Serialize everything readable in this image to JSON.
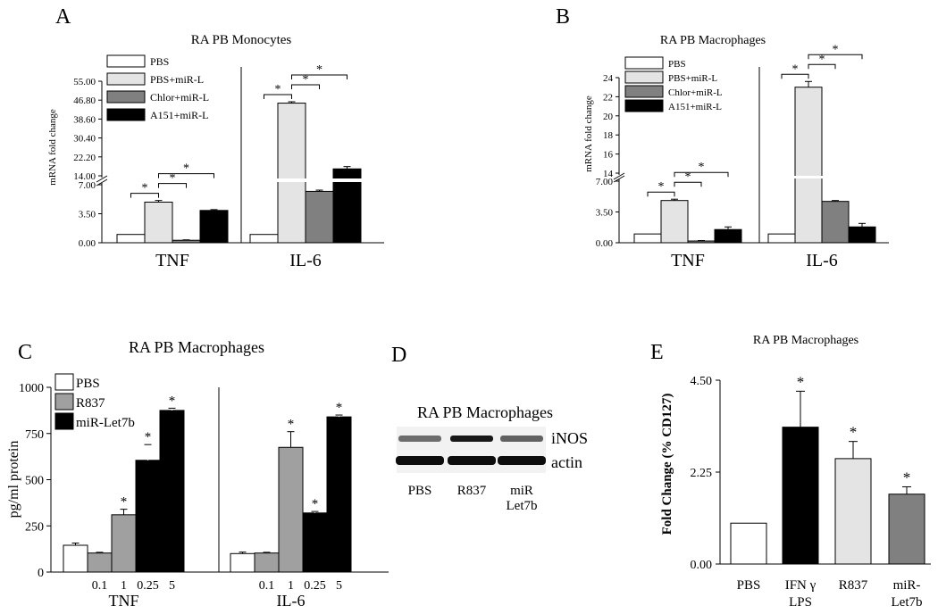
{
  "panels": {
    "A": {
      "letter": "A",
      "title": "RA PB Monocytes"
    },
    "B": {
      "letter": "B",
      "title": "RA PB Macrophages"
    },
    "C": {
      "letter": "C",
      "title": "RA PB Macrophages"
    },
    "D": {
      "letter": "D",
      "title": "RA PB Macrophages"
    },
    "E": {
      "letter": "E",
      "title": "RA PB Macrophages"
    }
  },
  "blot": {
    "bands": [
      "iNOS",
      "actin"
    ],
    "lanes": [
      "PBS",
      "R837",
      "miR\nLet7b"
    ],
    "inos_intensity": [
      0.55,
      0.9,
      0.6
    ],
    "actin_intensity": [
      0.95,
      0.95,
      0.95
    ]
  },
  "chart_data": [
    {
      "panel": "A",
      "type": "bar",
      "title": "RA PB Monocytes",
      "ylabel": "mRNA fold change",
      "groups": [
        "TNF",
        "IL-6"
      ],
      "legend": [
        "PBS",
        "PBS+miR-L",
        "Chlor+miR-L",
        "A151+miR-L"
      ],
      "series_colors": [
        "#ffffff",
        "#e4e4e4",
        "#808080",
        "#000000"
      ],
      "lower_axis": {
        "range": [
          0,
          7
        ],
        "ticks": [
          "0.00",
          "3.50",
          "7.00"
        ]
      },
      "upper_axis": {
        "range": [
          14,
          55
        ],
        "ticks": [
          "14.00",
          "22.20",
          "30.40",
          "38.60",
          "46.80",
          "55.00"
        ]
      },
      "axis_break": [
        7,
        14
      ],
      "values": {
        "TNF": [
          1.0,
          4.9,
          0.3,
          3.9
        ],
        "IL-6": [
          1.0,
          45.5,
          6.2,
          17.0
        ]
      },
      "errors": {
        "TNF": [
          0.0,
          0.2,
          0.05,
          0.1
        ],
        "IL-6": [
          0.0,
          0.6,
          0.15,
          1.0
        ]
      },
      "significance": {
        "TNF": [
          [
            1,
            0
          ],
          [
            1,
            2
          ],
          [
            1,
            3
          ]
        ],
        "IL-6": [
          [
            1,
            0
          ],
          [
            1,
            2
          ],
          [
            1,
            3
          ]
        ]
      },
      "sig_label": "*"
    },
    {
      "panel": "B",
      "type": "bar",
      "title": "RA PB Macrophages",
      "ylabel": "mRNA fold change",
      "groups": [
        "TNF",
        "IL-6"
      ],
      "legend": [
        "PBS",
        "PBS+miR-L",
        "Chlor+miR-L",
        "A151+miR-L"
      ],
      "series_colors": [
        "#ffffff",
        "#e4e4e4",
        "#808080",
        "#000000"
      ],
      "lower_axis": {
        "range": [
          0,
          7
        ],
        "ticks": [
          "0.00",
          "3.50",
          "7.00"
        ]
      },
      "upper_axis": {
        "range": [
          14,
          24
        ],
        "ticks": [
          "14",
          "16",
          "18",
          "20",
          "22",
          "24"
        ]
      },
      "axis_break": [
        7,
        14
      ],
      "values": {
        "TNF": [
          1.0,
          4.8,
          0.2,
          1.5
        ],
        "IL-6": [
          1.0,
          23.0,
          4.7,
          1.8
        ]
      },
      "errors": {
        "TNF": [
          0.0,
          0.15,
          0.05,
          0.3
        ],
        "IL-6": [
          0.0,
          0.6,
          0.1,
          0.4
        ]
      },
      "significance": {
        "TNF": [
          [
            1,
            0
          ],
          [
            1,
            2
          ],
          [
            1,
            3
          ]
        ],
        "IL-6": [
          [
            1,
            0
          ],
          [
            1,
            2
          ],
          [
            1,
            3
          ]
        ]
      },
      "sig_label": "*"
    },
    {
      "panel": "C",
      "type": "bar",
      "title": "RA PB Macrophages",
      "ylabel": "pg/ml protein",
      "legend": [
        "PBS",
        "R837",
        "miR-Let7b"
      ],
      "series_colors": [
        "#ffffff",
        "#a0a0a0",
        "#000000"
      ],
      "ylim": [
        0,
        1000
      ],
      "yticks": [
        "0",
        "250",
        "500",
        "750",
        "1000"
      ],
      "groups": [
        {
          "label": "TNF",
          "bars": [
            {
              "series": 0,
              "dose": "",
              "value": 145,
              "error": 12,
              "star": false
            },
            {
              "series": 1,
              "dose": "0.1",
              "value": 103,
              "error": 4,
              "star": false
            },
            {
              "series": 1,
              "dose": "1",
              "value": 310,
              "error": 30,
              "star": true
            },
            {
              "series": 2,
              "dose": "0.25",
              "value": 605,
              "error": 85,
              "star": true
            },
            {
              "series": 2,
              "dose": "5",
              "value": 875,
              "error": 12,
              "star": true
            }
          ]
        },
        {
          "label": "IL-6",
          "bars": [
            {
              "series": 0,
              "dose": "",
              "value": 100,
              "error": 8,
              "star": false
            },
            {
              "series": 1,
              "dose": "0.1",
              "value": 103,
              "error": 4,
              "star": false
            },
            {
              "series": 1,
              "dose": "1",
              "value": 675,
              "error": 85,
              "star": true
            },
            {
              "series": 2,
              "dose": "0.25",
              "value": 320,
              "error": 8,
              "star": true
            },
            {
              "series": 2,
              "dose": "5",
              "value": 840,
              "error": 10,
              "star": true
            }
          ]
        }
      ],
      "sig_label": "*"
    },
    {
      "panel": "E",
      "type": "bar",
      "title": "RA PB Macrophages",
      "ylabel": "Fold Change (% CD127)",
      "ylim": [
        0,
        4.5
      ],
      "yticks": [
        "0.00",
        "2.25",
        "4.50"
      ],
      "categories": [
        "PBS",
        "IFN γ\nLPS",
        "R837",
        "miR-\nLet7b"
      ],
      "values": [
        1.0,
        3.35,
        2.58,
        1.71
      ],
      "errors": [
        0.0,
        0.88,
        0.42,
        0.18
      ],
      "colors": [
        "#ffffff",
        "#000000",
        "#e4e4e4",
        "#808080"
      ],
      "stars": [
        false,
        true,
        true,
        true
      ],
      "sig_label": "*"
    }
  ]
}
